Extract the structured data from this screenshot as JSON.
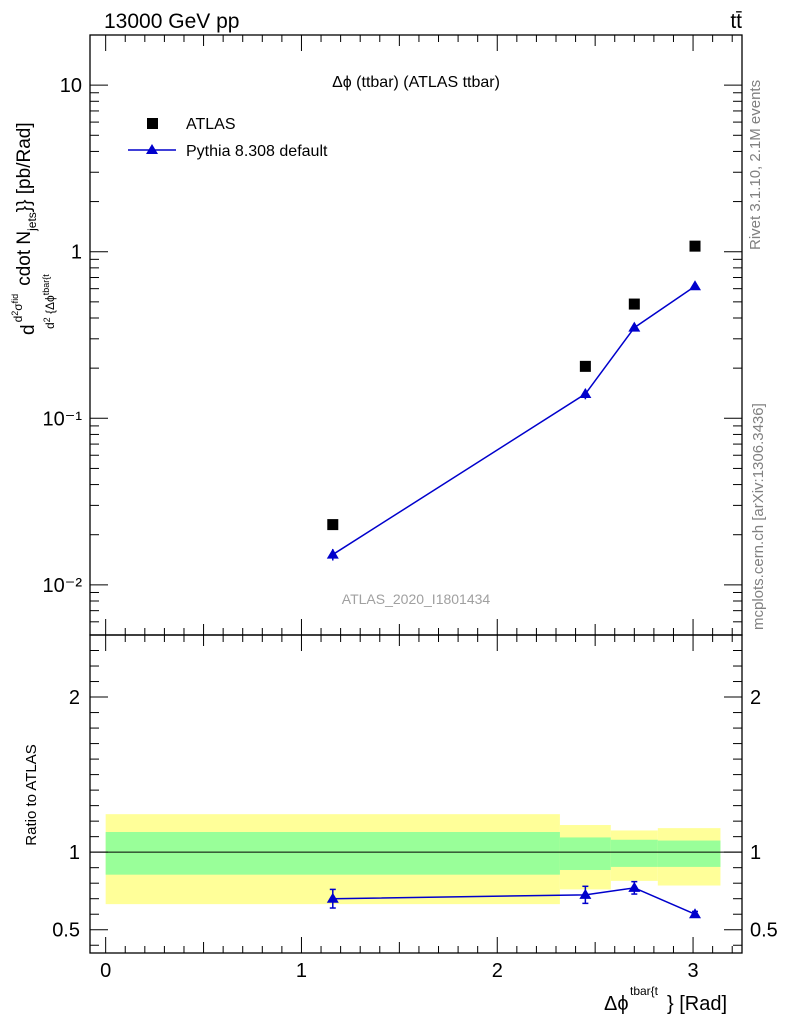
{
  "header": {
    "left_label": "13000 GeV pp",
    "right_label": "tt̄"
  },
  "side_labels": {
    "rivet": "Rivet 3.1.10,  2.1M events",
    "mcplots": "mcplots.cern.ch [arXiv:1306.3436]"
  },
  "colors": {
    "mc": "#0000cc",
    "data": "#000000",
    "band_inner": "#99ff99",
    "band_outer": "#ffff99"
  },
  "chart_data": [
    {
      "type": "scatter",
      "title": "Δϕ (ttbar) (ATLAS ttbar)",
      "watermark": "ATLAS_2020_I1801434",
      "ylabel": "d d²σ^fid / d² {Δϕ^tbar{t}} cdot N_jets}} [pb/Rad]",
      "yscale": "log",
      "ylim": [
        0.005,
        20
      ],
      "xlim": [
        -0.08,
        3.25
      ],
      "ytick_labels": [
        "10⁻²",
        "10⁻¹",
        "1",
        "10"
      ],
      "legend_position": "top-left",
      "series": [
        {
          "name": "ATLAS",
          "marker": "square",
          "x": [
            1.16,
            2.45,
            2.7,
            3.01
          ],
          "y": [
            0.023,
            0.205,
            0.485,
            1.08
          ]
        },
        {
          "name": "Pythia 8.308 default",
          "marker": "triangle",
          "x": [
            1.16,
            2.45,
            2.7,
            3.01
          ],
          "y": [
            0.0152,
            0.14,
            0.35,
            0.62
          ],
          "yerr": [
            0.0012,
            0.01,
            0.012,
            0.015
          ]
        }
      ]
    },
    {
      "type": "line",
      "ylabel": "Ratio to ATLAS",
      "xlabel": "Δϕ^tbar{t}} [Rad]",
      "ylim": [
        0.35,
        2.4
      ],
      "xlim": [
        -0.08,
        3.25
      ],
      "yticks": [
        0.5,
        1,
        2
      ],
      "ytick_labels": [
        "0.5",
        "1",
        "2"
      ],
      "xticks": [
        0,
        1,
        2,
        3
      ],
      "xtick_labels": [
        "0",
        "1",
        "2",
        "3"
      ],
      "reference_line": 1,
      "uncertainty_bands": [
        {
          "x0": 0.0,
          "x1": 2.32,
          "inner": [
            0.855,
            1.13
          ],
          "outer": [
            0.665,
            1.245
          ]
        },
        {
          "x0": 2.32,
          "x1": 2.58,
          "inner": [
            0.885,
            1.095
          ],
          "outer": [
            0.76,
            1.175
          ]
        },
        {
          "x0": 2.58,
          "x1": 2.82,
          "inner": [
            0.905,
            1.08
          ],
          "outer": [
            0.815,
            1.14
          ]
        },
        {
          "x0": 2.82,
          "x1": 3.14,
          "inner": [
            0.905,
            1.075
          ],
          "outer": [
            0.785,
            1.155
          ]
        }
      ],
      "series": [
        {
          "name": "Pythia 8.308 default",
          "x": [
            1.16,
            2.45,
            2.7,
            3.01
          ],
          "y": [
            0.7,
            0.725,
            0.77,
            0.6
          ],
          "yerr": [
            0.06,
            0.055,
            0.04,
            0.018
          ]
        }
      ]
    }
  ]
}
